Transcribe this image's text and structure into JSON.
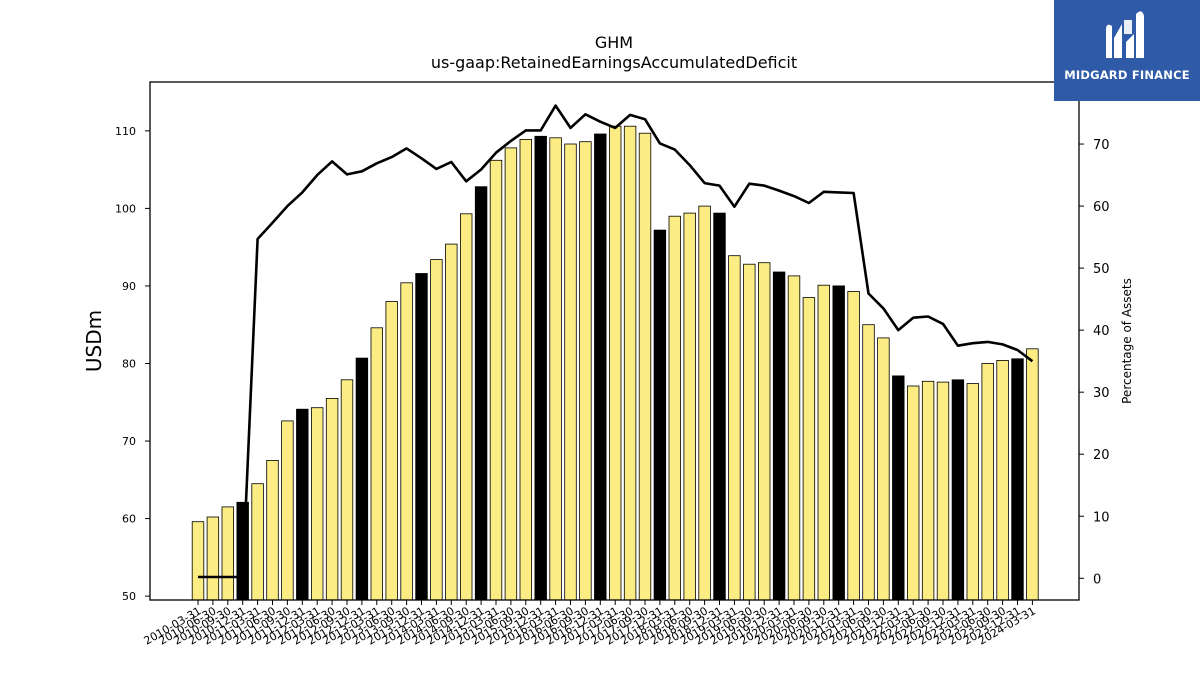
{
  "header": {
    "title": "GHM",
    "subtitle": "us-gaap:RetainedEarningsAccumulatedDeficit"
  },
  "logo": {
    "text": "MIDGARD FINANCE"
  },
  "chart_data": {
    "type": "bar",
    "xlabel": "",
    "ylabel": "USDm",
    "ylabel_right": "Percentage of Assets",
    "ylim": [
      49.5,
      116.3
    ],
    "y2lim": [
      -3.5,
      80.0
    ],
    "yticks": [
      50,
      60,
      70,
      80,
      90,
      100,
      110
    ],
    "y2ticks": [
      0,
      10,
      20,
      30,
      40,
      50,
      60,
      70
    ],
    "colors": {
      "bar": "#fcec84",
      "bar_highlight": "#000000",
      "line": "#000000"
    },
    "categories": [
      "2010-03-31",
      "2010-06-30",
      "2010-09-30",
      "2010-12-31",
      "2011-03-31",
      "2011-06-30",
      "2011-09-30",
      "2011-12-31",
      "2012-03-31",
      "2012-06-30",
      "2012-09-30",
      "2012-12-31",
      "2013-03-31",
      "2013-06-30",
      "2013-09-30",
      "2013-12-31",
      "2014-03-31",
      "2014-06-30",
      "2014-09-30",
      "2014-12-31",
      "2015-03-31",
      "2015-06-30",
      "2015-09-30",
      "2015-12-31",
      "2016-03-31",
      "2016-06-30",
      "2016-09-30",
      "2016-12-31",
      "2017-03-31",
      "2017-06-30",
      "2017-09-30",
      "2017-12-31",
      "2018-03-31",
      "2018-06-30",
      "2018-09-30",
      "2018-12-31",
      "2019-03-31",
      "2019-06-30",
      "2019-09-30",
      "2019-12-31",
      "2020-03-31",
      "2020-06-30",
      "2020-09-30",
      "2020-12-31",
      "2021-03-31",
      "2021-06-30",
      "2021-09-30",
      "2021-12-31",
      "2022-03-31",
      "2022-06-30",
      "2022-09-30",
      "2022-12-31",
      "2023-03-31",
      "2023-06-30",
      "2023-09-30",
      "2023-12-31",
      "2024-03-31"
    ],
    "series": [
      {
        "type": "bar",
        "values": [
          59.6,
          60.2,
          61.5,
          62.1,
          64.5,
          67.5,
          72.6,
          74.1,
          74.3,
          75.5,
          77.9,
          80.7,
          84.6,
          88.0,
          90.4,
          91.6,
          93.4,
          95.4,
          99.3,
          102.8,
          106.2,
          107.8,
          108.9,
          109.3,
          109.1,
          108.3,
          108.6,
          109.6,
          110.6,
          110.6,
          109.7,
          97.2,
          99.0,
          99.4,
          100.3,
          99.4,
          93.9,
          92.8,
          93.0,
          91.8,
          91.3,
          88.5,
          90.1,
          90.0,
          89.3,
          85.0,
          83.3,
          78.4,
          77.1,
          77.7,
          77.6,
          77.9,
          77.4,
          80.0,
          80.4,
          80.6,
          81.9
        ],
        "highlight": [
          false,
          false,
          false,
          true,
          false,
          false,
          false,
          true,
          false,
          false,
          false,
          true,
          false,
          false,
          false,
          true,
          false,
          false,
          false,
          true,
          false,
          false,
          false,
          true,
          false,
          false,
          false,
          true,
          false,
          false,
          false,
          true,
          false,
          false,
          false,
          true,
          false,
          false,
          false,
          true,
          false,
          false,
          false,
          true,
          false,
          false,
          false,
          true,
          false,
          false,
          false,
          true,
          false,
          false,
          false,
          true,
          false
        ]
      },
      {
        "type": "line",
        "axis": "right",
        "values": [
          0.2,
          0.2,
          0.2,
          0.2,
          54.7,
          57.3,
          60.0,
          62.2,
          65.0,
          67.2,
          65.1,
          65.6,
          66.9,
          67.9,
          69.3,
          67.7,
          66.0,
          67.1,
          64.0,
          65.9,
          68.6,
          70.5,
          72.2,
          72.2,
          76.2,
          72.6,
          74.8,
          73.6,
          72.6,
          74.7,
          74.0,
          70.1,
          69.1,
          66.6,
          63.7,
          63.3,
          59.9,
          63.6,
          63.3,
          62.5,
          61.6,
          60.5,
          62.3,
          62.2,
          62.1,
          45.9,
          43.5,
          40.0,
          42.0,
          42.2,
          41.0,
          37.5,
          37.9,
          38.1,
          37.7,
          36.8,
          35.0
        ]
      }
    ]
  }
}
